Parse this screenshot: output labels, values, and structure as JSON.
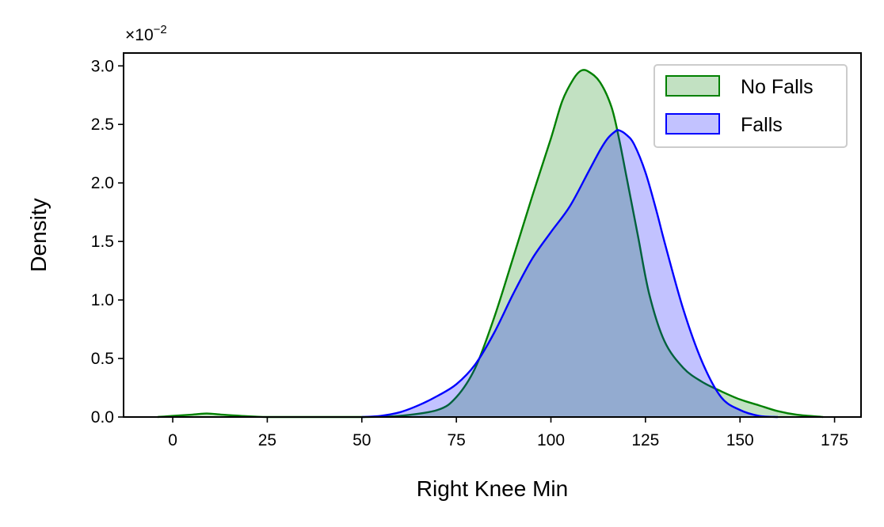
{
  "chart_data": {
    "type": "area",
    "title": "",
    "xlabel": "Right Knee Min",
    "ylabel": "Density",
    "y_scale_label": "×10",
    "y_scale_exponent": "−2",
    "xlim": [
      -13,
      182
    ],
    "ylim": [
      0,
      0.0311
    ],
    "x_ticks": [
      0,
      25,
      50,
      75,
      100,
      125,
      150,
      175
    ],
    "x_tick_labels": [
      "0",
      "25",
      "50",
      "75",
      "100",
      "125",
      "150",
      "175"
    ],
    "y_ticks": [
      0,
      0.005,
      0.01,
      0.015,
      0.02,
      0.025,
      0.03
    ],
    "y_tick_labels": [
      "0.0",
      "0.5",
      "1.0",
      "1.5",
      "2.0",
      "2.5",
      "3.0"
    ],
    "grid": false,
    "legend_position": "top-right",
    "series": [
      {
        "name": "No Falls",
        "line_color": "#008000",
        "fill_color": "#008000",
        "fill_opacity": 0.24,
        "x": [
          -4,
          0,
          5,
          9,
          13,
          18,
          25,
          35,
          50,
          60,
          70,
          75,
          80,
          85,
          90,
          95,
          100,
          103,
          106,
          108,
          110,
          113,
          116,
          118,
          120,
          123,
          126,
          130,
          135,
          140,
          145,
          150,
          155,
          160,
          165,
          172
        ],
        "y": [
          0,
          0.0001,
          0.0002,
          0.0003,
          0.0002,
          0.0001,
          0,
          0,
          0,
          0.0001,
          0.0006,
          0.0017,
          0.0042,
          0.0085,
          0.0136,
          0.0188,
          0.0238,
          0.027,
          0.0289,
          0.0296,
          0.0295,
          0.0286,
          0.0265,
          0.0238,
          0.0205,
          0.0155,
          0.0105,
          0.0065,
          0.0042,
          0.003,
          0.0022,
          0.0015,
          0.001,
          0.0005,
          0.0002,
          0
        ]
      },
      {
        "name": "Falls",
        "line_color": "#0000ff",
        "fill_color": "#0000ff",
        "fill_opacity": 0.24,
        "x": [
          50,
          55,
          60,
          65,
          70,
          75,
          80,
          85,
          90,
          95,
          100,
          105,
          110,
          113,
          115,
          117,
          118,
          120,
          122,
          125,
          128,
          130,
          135,
          140,
          145,
          150,
          155,
          160
        ],
        "y": [
          0,
          0.0001,
          0.0004,
          0.001,
          0.0018,
          0.0028,
          0.0045,
          0.0072,
          0.0105,
          0.0135,
          0.0158,
          0.018,
          0.021,
          0.0228,
          0.0238,
          0.0244,
          0.0245,
          0.0241,
          0.0233,
          0.0209,
          0.0175,
          0.015,
          0.0092,
          0.0047,
          0.0017,
          0.0006,
          0.0001,
          0
        ]
      }
    ]
  }
}
